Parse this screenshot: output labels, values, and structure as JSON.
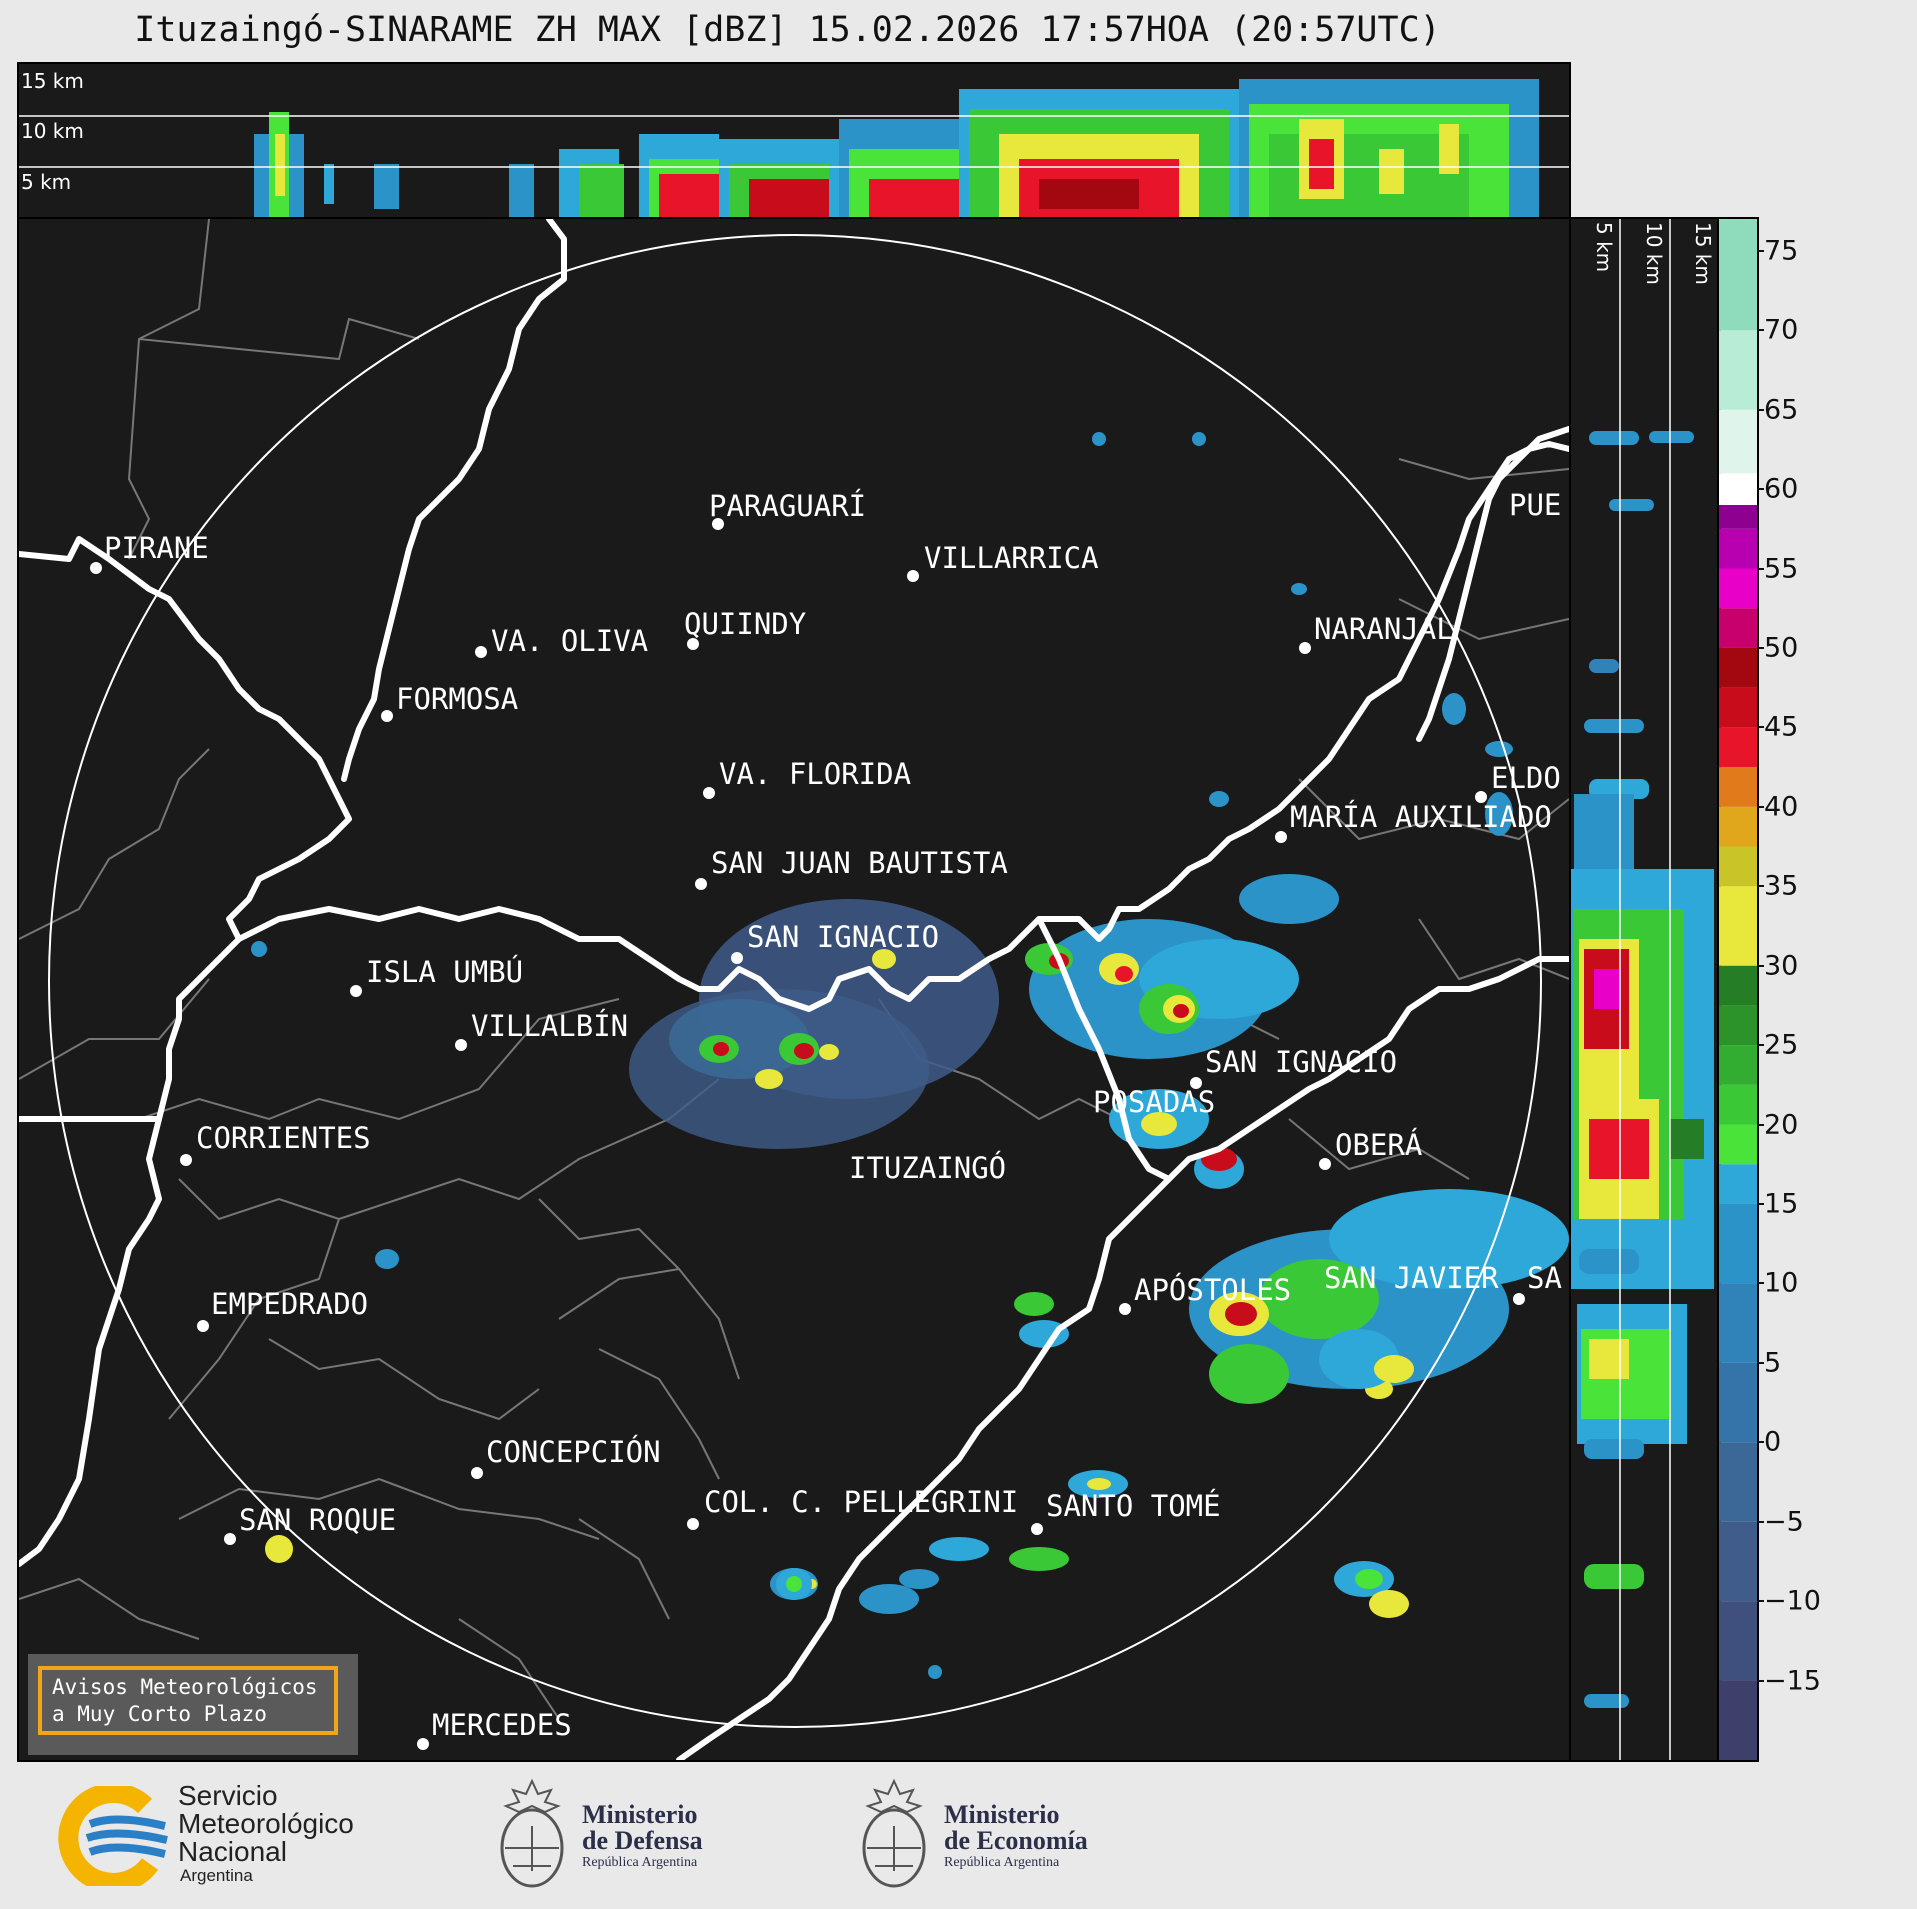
{
  "title": "Ituzaingó-SINARAME ZH MAX [dBZ] 15.02.2026 17:57HOA (20:57UTC)",
  "top_strip": {
    "labels": [
      "15 km",
      "10 km",
      "5 km"
    ]
  },
  "side_strip": {
    "labels": [
      "5 km",
      "10 km",
      "15 km"
    ]
  },
  "colorbar": {
    "ticks": [
      "75",
      "70",
      "65",
      "60",
      "55",
      "50",
      "45",
      "40",
      "35",
      "30",
      "25",
      "20",
      "15",
      "10",
      "5",
      "0",
      "−5",
      "−10",
      "−15"
    ],
    "tick_values": [
      75,
      70,
      65,
      60,
      55,
      50,
      45,
      40,
      35,
      30,
      25,
      20,
      15,
      10,
      5,
      0,
      -5,
      -10,
      -15
    ],
    "range": [
      -20,
      77
    ],
    "stops": [
      {
        "from": -20,
        "color": "#3e3f6b"
      },
      {
        "from": -15,
        "color": "#3f4f7e"
      },
      {
        "from": -10,
        "color": "#3f5c8a"
      },
      {
        "from": -5,
        "color": "#3b6896"
      },
      {
        "from": 0,
        "color": "#3474a8"
      },
      {
        "from": 5,
        "color": "#2f83b8"
      },
      {
        "from": 10,
        "color": "#2b93c7"
      },
      {
        "from": 15,
        "color": "#2ea8d8"
      },
      {
        "from": 17.5,
        "color": "#49e33a"
      },
      {
        "from": 20,
        "color": "#3bc837"
      },
      {
        "from": 22.5,
        "color": "#33ad31"
      },
      {
        "from": 25,
        "color": "#2c932b"
      },
      {
        "from": 27.5,
        "color": "#257d25"
      },
      {
        "from": 30,
        "color": "#e8e83c"
      },
      {
        "from": 35,
        "color": "#c9c428"
      },
      {
        "from": 37.5,
        "color": "#e0a61c"
      },
      {
        "from": 40,
        "color": "#e07a1a"
      },
      {
        "from": 42.5,
        "color": "#e8142a"
      },
      {
        "from": 45,
        "color": "#c80c1c"
      },
      {
        "from": 47.5,
        "color": "#a30810"
      },
      {
        "from": 50,
        "color": "#c8006e"
      },
      {
        "from": 52.5,
        "color": "#e800c8"
      },
      {
        "from": 55,
        "color": "#b800b0"
      },
      {
        "from": 57.5,
        "color": "#8e0090"
      },
      {
        "from": 59,
        "color": "#ffffff"
      },
      {
        "from": 61,
        "color": "#dff5ec"
      },
      {
        "from": 65,
        "color": "#b9ecd6"
      },
      {
        "from": 70,
        "color": "#8fdcbd"
      }
    ]
  },
  "cities": [
    {
      "name": "PIRANE"
    },
    {
      "name": "PARAGUARÍ"
    },
    {
      "name": "VILLARRICA"
    },
    {
      "name": "QUIINDY"
    },
    {
      "name": "VA. OLIVA"
    },
    {
      "name": "FORMOSA"
    },
    {
      "name": "NARANJAL"
    },
    {
      "name": "PUE"
    },
    {
      "name": "VA. FLORIDA"
    },
    {
      "name": "ELDO"
    },
    {
      "name": "MARÍA AUXILIADO"
    },
    {
      "name": "SAN JUAN BAUTISTA"
    },
    {
      "name": "SAN IGNACIO"
    },
    {
      "name": "ISLA UMBÚ"
    },
    {
      "name": "VILLALBÍN"
    },
    {
      "name": "SAN IGNACIO"
    },
    {
      "name": "POSADAS"
    },
    {
      "name": "CORRIENTES"
    },
    {
      "name": "ITUZAINGÓ"
    },
    {
      "name": "OBERÁ"
    },
    {
      "name": "EMPEDRADO"
    },
    {
      "name": "APÓSTOLES"
    },
    {
      "name": "SAN JAVIER"
    },
    {
      "name": "SA"
    },
    {
      "name": "CONCEPCIÓN"
    },
    {
      "name": "COL. C. PELLEGRINI"
    },
    {
      "name": "SANTO TOMÉ"
    },
    {
      "name": "SAN ROQUE"
    },
    {
      "name": "MERCEDES"
    }
  ],
  "avisos": {
    "line1": "Avisos Meteorológicos",
    "line2": "a Muy Corto Plazo"
  },
  "logos": {
    "smn": {
      "line1": "Servicio",
      "line2": "Meteorológico",
      "line3": "Nacional",
      "line4": "Argentina"
    },
    "defensa": {
      "line1": "Ministerio",
      "line2": "de Defensa",
      "line3": "República Argentina"
    },
    "economia": {
      "line1": "Ministerio",
      "line2": "de Economía",
      "line3": "República Argentina"
    }
  },
  "colors": {
    "frame": "#1a1a1a",
    "accent_orange": "#f2a516",
    "smn_blue": "#2a7fc7",
    "smn_yellow": "#f5b400"
  }
}
